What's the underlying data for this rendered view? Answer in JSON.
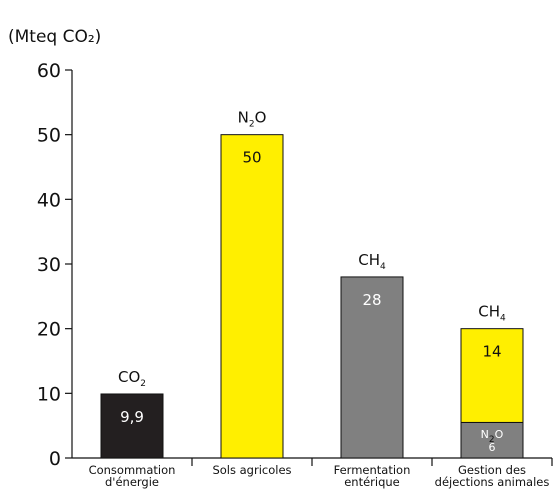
{
  "chart_data": {
    "type": "bar",
    "stacked": true,
    "unit_label": "(Mteq CO₂)",
    "ylim": [
      0,
      60
    ],
    "yticks": [
      0,
      10,
      20,
      30,
      40,
      50,
      60
    ],
    "grid": false,
    "categories": [
      {
        "label_lines": [
          "Consommation",
          "d'énergie"
        ]
      },
      {
        "label_lines": [
          "Sols agricoles"
        ]
      },
      {
        "label_lines": [
          "Fermentation",
          "entérique"
        ]
      },
      {
        "label_lines": [
          "Gestion des",
          "déjections animales"
        ]
      }
    ],
    "bars": [
      {
        "gas_label": {
          "base": "CO",
          "sub": "2"
        },
        "segments": [
          {
            "value": 9.9,
            "label": "9,9",
            "color": "#231f20",
            "label_color": "#ffffff",
            "label_pos": "top"
          }
        ]
      },
      {
        "gas_label": {
          "base": "N",
          "sub": "2",
          "rest": "O"
        },
        "segments": [
          {
            "value": 50,
            "label": "50",
            "color": "#ffef00",
            "label_color": "#111111",
            "label_pos": "top"
          }
        ]
      },
      {
        "gas_label": {
          "base": "CH",
          "sub": "4"
        },
        "segments": [
          {
            "value": 28,
            "label": "28",
            "color": "#808080",
            "label_color": "#ffffff",
            "label_pos": "top"
          }
        ]
      },
      {
        "gas_label": {
          "base": "CH",
          "sub": "4"
        },
        "segments": [
          {
            "value": 5.5,
            "label": "6",
            "color": "#808080",
            "label_color": "#ffffff",
            "label_pos": "center",
            "gas_label": {
              "base": "N",
              "sub": "2",
              "rest": "O"
            }
          },
          {
            "value": 14.5,
            "label": "14",
            "color": "#ffef00",
            "label_color": "#111111",
            "label_pos": "top"
          }
        ]
      }
    ]
  }
}
